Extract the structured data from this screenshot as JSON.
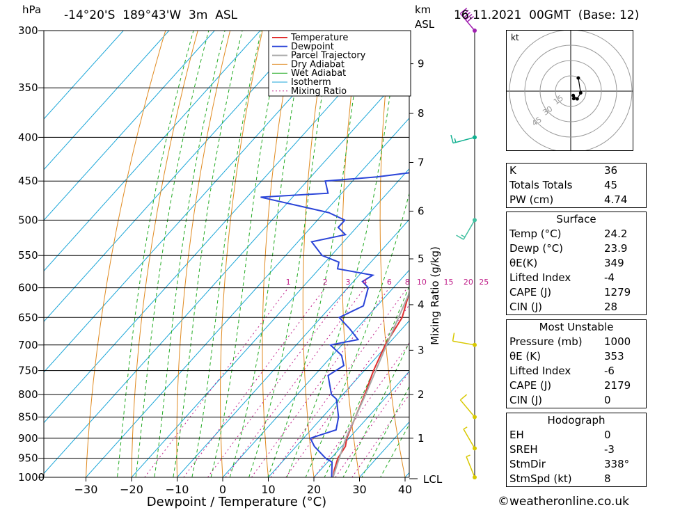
{
  "header": {
    "location": "-14°20'S  189°43'W  3m  ASL",
    "datetime": "16.11.2021  00GMT  (Base: 12)",
    "hpa_unit": "hPa",
    "km_unit": "km",
    "asl_unit": "ASL"
  },
  "chart_data": {
    "type": "line",
    "title": "",
    "xlabel": "Dewpoint / Temperature (°C)",
    "ylabel": "hPa",
    "right_label": "Mixing Ratio (g/kg)",
    "xlim": [
      -40,
      40
    ],
    "ylim": [
      1000,
      300
    ],
    "x_ticks": [
      -30,
      -20,
      -10,
      0,
      10,
      20,
      30,
      40
    ],
    "pressure_ticks": [
      300,
      350,
      400,
      450,
      500,
      550,
      600,
      650,
      700,
      750,
      800,
      850,
      900,
      950,
      1000
    ],
    "km_ticks": [
      {
        "km": "1",
        "p": 900
      },
      {
        "km": "2",
        "p": 800
      },
      {
        "km": "3",
        "p": 710
      },
      {
        "km": "4",
        "p": 628
      },
      {
        "km": "5",
        "p": 555
      },
      {
        "km": "6",
        "p": 488
      },
      {
        "km": "7",
        "p": 428
      },
      {
        "km": "8",
        "p": 375
      },
      {
        "km": "9",
        "p": 328
      }
    ],
    "lcl_label": "LCL",
    "mixing_ratio_labels": [
      "1",
      "2",
      "3",
      "4",
      "6",
      "8",
      "10",
      "15",
      "20",
      "25"
    ],
    "legend": [
      "Temperature",
      "Dewpoint",
      "Parcel Trajectory",
      "Dry Adiabat",
      "Wet Adiabat",
      "Isotherm",
      "Mixing Ratio"
    ],
    "legend_position": "top-right",
    "colors": {
      "temperature": "#e03030",
      "dewpoint": "#2a44d8",
      "parcel": "#a8a8a8",
      "dry": "#e08a20",
      "wet": "#22aa22",
      "iso": "#1aa6d8",
      "mix": "#c0208a"
    },
    "series": [
      {
        "name": "Temperature",
        "points": [
          [
            1000,
            24.2
          ],
          [
            980,
            23
          ],
          [
            950,
            21.5
          ],
          [
            920,
            20.8
          ],
          [
            900,
            19.5
          ],
          [
            850,
            17.2
          ],
          [
            800,
            14.8
          ],
          [
            750,
            12.0
          ],
          [
            700,
            9.5
          ],
          [
            650,
            7.8
          ],
          [
            600,
            3.8
          ],
          [
            550,
            0.2
          ],
          [
            500,
            -4.8
          ],
          [
            450,
            -11.5
          ],
          [
            420,
            -13.5
          ],
          [
            400,
            -16.5
          ],
          [
            350,
            -25.5
          ],
          [
            300,
            -34.5
          ]
        ]
      },
      {
        "name": "Dewpoint",
        "points": [
          [
            1000,
            23.9
          ],
          [
            960,
            21
          ],
          [
            950,
            18.8
          ],
          [
            920,
            14.0
          ],
          [
            900,
            11.5
          ],
          [
            880,
            15.5
          ],
          [
            850,
            13.5
          ],
          [
            810,
            9.5
          ],
          [
            800,
            7.5
          ],
          [
            760,
            3.0
          ],
          [
            740,
            4.5
          ],
          [
            720,
            2.0
          ],
          [
            700,
            -2.5
          ],
          [
            690,
            2.5
          ],
          [
            670,
            -1.5
          ],
          [
            650,
            -6.0
          ],
          [
            630,
            -3.0
          ],
          [
            600,
            -5.5
          ],
          [
            590,
            -8.0
          ],
          [
            580,
            -7.0
          ],
          [
            570,
            -16.0
          ],
          [
            560,
            -17.0
          ],
          [
            550,
            -22.0
          ],
          [
            530,
            -27.0
          ],
          [
            520,
            -21.0
          ],
          [
            510,
            -24.0
          ],
          [
            500,
            -24.0
          ],
          [
            490,
            -29.0
          ],
          [
            470,
            -47.0
          ],
          [
            465,
            -33.0
          ],
          [
            450,
            -36.0
          ],
          [
            445,
            -25.5
          ],
          [
            440,
            -19.0
          ],
          [
            400,
            -19.0
          ],
          [
            380,
            -19.5
          ],
          [
            350,
            -19.5
          ],
          [
            340,
            -23.5
          ],
          [
            310,
            -27.5
          ],
          [
            300,
            -38.5
          ]
        ]
      },
      {
        "name": "Parcel Trajectory",
        "points": [
          [
            1000,
            24.2
          ],
          [
            950,
            21.8
          ],
          [
            900,
            19.3
          ],
          [
            850,
            17.2
          ],
          [
            800,
            15.0
          ],
          [
            750,
            12.5
          ],
          [
            700,
            9.8
          ],
          [
            650,
            7.0
          ],
          [
            600,
            4.0
          ],
          [
            550,
            0.8
          ],
          [
            500,
            -3.0
          ],
          [
            450,
            -7.5
          ],
          [
            400,
            -13.0
          ],
          [
            370,
            -17.0
          ]
        ]
      }
    ],
    "wind_barbs": [
      {
        "p": 1000,
        "dir": 338,
        "speed": 8
      },
      {
        "p": 925,
        "dir": 330,
        "speed": 5
      },
      {
        "p": 850,
        "dir": 320,
        "speed": 10
      },
      {
        "p": 700,
        "dir": 280,
        "speed": 10
      },
      {
        "p": 500,
        "dir": 210,
        "speed": 15
      },
      {
        "p": 400,
        "dir": 255,
        "speed": 15
      },
      {
        "p": 300,
        "dir": 320,
        "speed": 50
      }
    ]
  },
  "hodograph": {
    "unit": "kt",
    "ring_labels": [
      "15",
      "30",
      "45"
    ]
  },
  "indices": [
    {
      "label": "K",
      "value": "36"
    },
    {
      "label": "Totals Totals",
      "value": "45"
    },
    {
      "label": "PW (cm)",
      "value": "4.74"
    }
  ],
  "surface": {
    "title": "Surface",
    "rows": [
      {
        "label": "Temp (°C)",
        "value": "24.2"
      },
      {
        "label": "Dewp (°C)",
        "value": "23.9"
      },
      {
        "label": "θE(K)",
        "value": "349"
      },
      {
        "label": "Lifted Index",
        "value": "-4"
      },
      {
        "label": "CAPE (J)",
        "value": "1279"
      },
      {
        "label": "CIN (J)",
        "value": "28"
      }
    ]
  },
  "most_unstable": {
    "title": "Most Unstable",
    "rows": [
      {
        "label": "Pressure (mb)",
        "value": "1000"
      },
      {
        "label": "θE (K)",
        "value": "353"
      },
      {
        "label": "Lifted Index",
        "value": "-6"
      },
      {
        "label": "CAPE (J)",
        "value": "2179"
      },
      {
        "label": "CIN (J)",
        "value": "0"
      }
    ]
  },
  "hodo_table": {
    "title": "Hodograph",
    "rows": [
      {
        "label": "EH",
        "value": "0"
      },
      {
        "label": "SREH",
        "value": "-3"
      },
      {
        "label": "StmDir",
        "value": "338°"
      },
      {
        "label": "StmSpd (kt)",
        "value": "8"
      }
    ]
  },
  "credit": "©weatheronline.co.uk"
}
